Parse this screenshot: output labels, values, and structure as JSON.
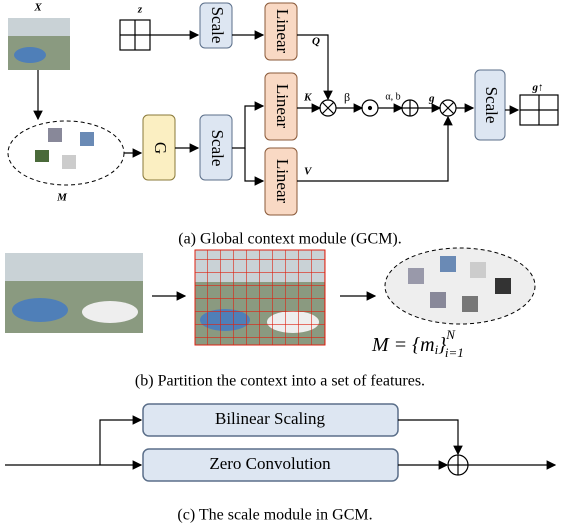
{
  "global_context_module": {
    "input_label": "X",
    "noise_label": "z",
    "context_label": "M",
    "g_block": "G",
    "scale_blocks": [
      "Scale",
      "Scale",
      "Scale"
    ],
    "linear_blocks": [
      "Linear",
      "Linear",
      "Linear"
    ],
    "q_label": "Q",
    "k_label": "K",
    "v_label": "V",
    "beta_label": "β",
    "alpha_b_label": "α, b",
    "g_label": "g",
    "g_up_label": "g↑",
    "caption": "(a) Global context module (GCM)."
  },
  "partition": {
    "formula": {
      "base": "M = {m",
      "sub": "i",
      "close": "}",
      "sup": "N",
      "range": "i=1"
    },
    "caption": "(b) Partition the context into a set of features."
  },
  "scale_module": {
    "top_block": "Bilinear Scaling",
    "bottom_block": "Zero Convolution",
    "caption": "(c) The scale module in GCM."
  }
}
